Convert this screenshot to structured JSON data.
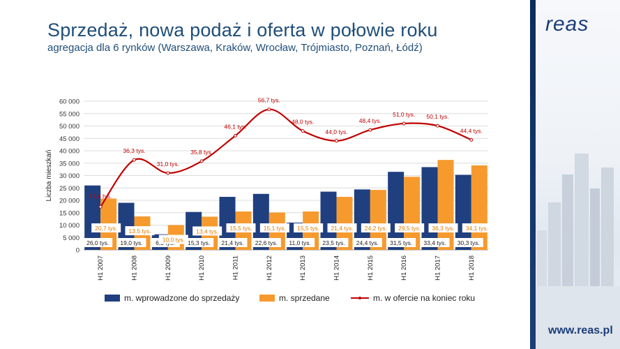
{
  "slide": {
    "title": "Sprzedaż, nowa podaż i oferta w połowie roku",
    "subtitle": "agregacja dla 6 rynków (Warszawa, Kraków, Wrocław, Trójmiasto, Poznań, Łódź)",
    "logo_text": "reas",
    "website": "www.reas.pl"
  },
  "colors": {
    "new_supply": "#1f3f7f",
    "sold": "#f79a2e",
    "offer_line": "#c00000",
    "title": "#1f4e79"
  },
  "chart_data": {
    "type": "bar",
    "title": "",
    "xlabel": "",
    "ylabel": "Liczba mieszkań",
    "ylim": [
      0,
      60000
    ],
    "yticks": [
      0,
      5000,
      10000,
      15000,
      20000,
      25000,
      30000,
      35000,
      40000,
      45000,
      50000,
      55000,
      60000
    ],
    "ytick_labels": [
      "0",
      "5 000",
      "10 000",
      "15 000",
      "20 000",
      "25 000",
      "30 000",
      "35 000",
      "40 000",
      "45 000",
      "50 000",
      "55 000",
      "60 000"
    ],
    "grid": true,
    "legend_position": "bottom",
    "categories": [
      "H1 2007",
      "H1 2008",
      "H1 2009",
      "H1 2010",
      "H1 2011",
      "H1 2012",
      "H1 2013",
      "H1 2014",
      "H1 2015",
      "H1 2016",
      "H1 2017",
      "H1 2018"
    ],
    "series": [
      {
        "name": "m. wprowadzone do sprzedaży",
        "kind": "bar",
        "values": [
          26000,
          19000,
          6300,
          15300,
          21400,
          22600,
          11000,
          23500,
          24400,
          31500,
          33400,
          30300
        ],
        "labels": [
          "26,0 tys.",
          "19,0 tys.",
          "6,3 tys.",
          "15,3 tys.",
          "21,4 tys.",
          "22,6 tys.",
          "11,0 tys.",
          "23,5 tys.",
          "24,4 tys.",
          "31,5 tys.",
          "33,4 tys.",
          "30,3 tys."
        ]
      },
      {
        "name": "m. sprzedane",
        "kind": "bar",
        "values": [
          20700,
          13500,
          10000,
          13400,
          15500,
          15100,
          15500,
          21400,
          24200,
          29500,
          36300,
          34100
        ],
        "labels": [
          "20,7 tys.",
          "13,5 tys.",
          "10,0 tys.",
          "13,4 tys.",
          "15,5 tys.",
          "15,1 tys.",
          "15,5 tys.",
          "21,4 tys.",
          "24,2 tys.",
          "29,5 tys.",
          "36,3 tys.",
          "34,1 tys."
        ]
      },
      {
        "name": "m. w ofercie na koniec roku",
        "kind": "line",
        "values": [
          17400,
          36300,
          31000,
          35800,
          46100,
          56700,
          48000,
          44000,
          48400,
          51000,
          50100,
          44400
        ],
        "labels": [
          "17,4 tys.",
          "36,3 tys.",
          "31,0 tys.",
          "35,8 tys.",
          "46,1 tys.",
          "56,7 tys.",
          "48,0 tys.",
          "44,0 tys.",
          "48,4 tys.",
          "51,0 tys.",
          "50,1 tys.",
          "44,4 tys."
        ]
      }
    ]
  }
}
